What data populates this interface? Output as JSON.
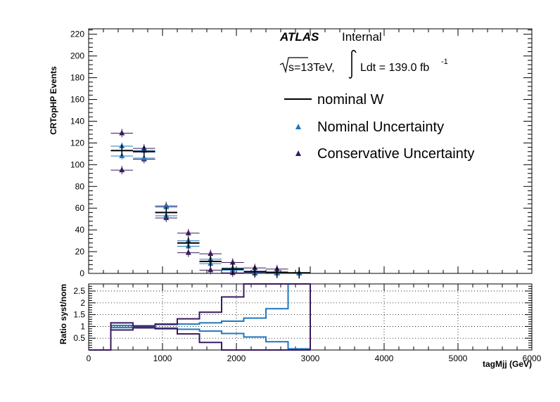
{
  "chart_data": [
    {
      "type": "scatter",
      "panel": "main",
      "ylabel": "CRTopHP Events",
      "ylim": [
        0,
        225
      ],
      "xlim": [
        0,
        6000
      ],
      "yticks": [
        0,
        20,
        40,
        60,
        80,
        100,
        120,
        140,
        160,
        180,
        200,
        220
      ],
      "bin_edges": [
        300,
        600,
        900,
        1200,
        1500,
        1800,
        2100,
        2400,
        2700,
        3000
      ],
      "series": [
        {
          "name": "nominal W",
          "style": "line",
          "color": "#000000",
          "values": [
            113,
            112,
            56,
            28,
            11,
            4,
            1.5,
            1,
            0.5
          ]
        },
        {
          "name": "Nominal Uncertainty",
          "style": "triangle",
          "color": "#1f77c0",
          "upper": [
            117,
            113,
            61,
            30,
            13,
            5,
            2,
            1,
            0.5
          ],
          "lower": [
            108,
            106,
            53,
            25,
            9,
            3,
            1,
            0.5,
            0.2
          ]
        },
        {
          "name": "Conservative Uncertainty",
          "style": "triangle",
          "color": "#3b1a5e",
          "upper": [
            129,
            115,
            62,
            37,
            18,
            10,
            5,
            4,
            0.5
          ],
          "lower": [
            95,
            105,
            51,
            19,
            3,
            0.5,
            0.2,
            0.2,
            0.2
          ]
        }
      ],
      "legend_position": "top-right"
    },
    {
      "type": "line",
      "panel": "ratio",
      "ylabel": "Ratio syst/nom",
      "xlabel": "tagMjj (GeV)",
      "xlim": [
        0,
        6000
      ],
      "ylim": [
        0,
        2.8
      ],
      "xticks": [
        0,
        1000,
        2000,
        3000,
        4000,
        5000,
        6000
      ],
      "yticks": [
        0.5,
        1,
        1.5,
        2,
        2.5
      ],
      "grid": true,
      "bin_edges": [
        300,
        600,
        900,
        1200,
        1500,
        1800,
        2100,
        2400,
        2700,
        3000
      ],
      "series": [
        {
          "name": "Nominal Uncertainty up",
          "color": "#1f77c0",
          "values": [
            1.04,
            1.02,
            1.08,
            1.1,
            1.15,
            1.22,
            1.35,
            1.75,
            2.8
          ]
        },
        {
          "name": "Nominal Uncertainty down",
          "color": "#1f77c0",
          "values": [
            0.95,
            0.96,
            0.93,
            0.88,
            0.8,
            0.7,
            0.55,
            0.35,
            0.05
          ]
        },
        {
          "name": "Conservative Uncertainty up",
          "color": "#3b1a5e",
          "values": [
            1.15,
            1.02,
            1.1,
            1.32,
            1.6,
            2.25,
            2.8,
            2.8,
            2.8
          ]
        },
        {
          "name": "Conservative Uncertainty down",
          "color": "#3b1a5e",
          "values": [
            0.85,
            0.94,
            0.9,
            0.68,
            0.32,
            0.0,
            0.0,
            0.0,
            0.0
          ]
        }
      ]
    }
  ],
  "labels": {
    "atlas": "ATLAS",
    "internal": "Internal",
    "sqrt_s": "s=13TeV,",
    "lumi": "Ldt = 139.0 fb",
    "lumi_exp": "-1"
  },
  "legend": [
    {
      "label": "nominal W",
      "marker": "line",
      "color": "#000000"
    },
    {
      "label": "Nominal Uncertainty",
      "marker": "triangle",
      "color": "#1f77c0"
    },
    {
      "label": "Conservative Uncertainty",
      "marker": "triangle",
      "color": "#3b1a5e"
    }
  ]
}
